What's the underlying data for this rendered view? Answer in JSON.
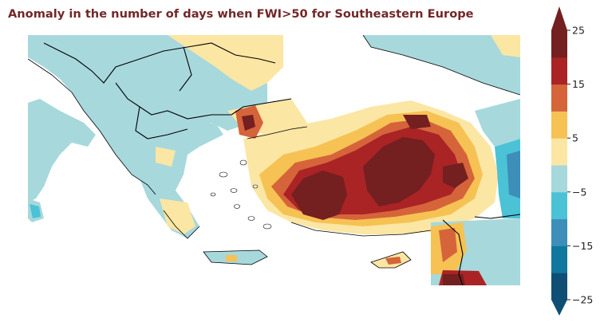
{
  "title": "Anomaly in the number of days when FWI>50 for Southeastern Europe",
  "title_color": "#722727",
  "map_region": "Southeastern Europe",
  "colorbar": {
    "min": -25,
    "max": 25,
    "step": 5,
    "extend": "both",
    "tick_labels": [
      "25",
      "15",
      "5",
      "−5",
      "−15",
      "−25"
    ],
    "tick_values": [
      25,
      15,
      5,
      -5,
      -15,
      -25
    ],
    "colors_low_to_high": [
      "#0f4f75",
      "#10779e",
      "#3d8eb9",
      "#4bc2d6",
      "#a7d8dc",
      "#fbe6a4",
      "#f6c253",
      "#d5643b",
      "#aa2325",
      "#741f20"
    ]
  }
}
